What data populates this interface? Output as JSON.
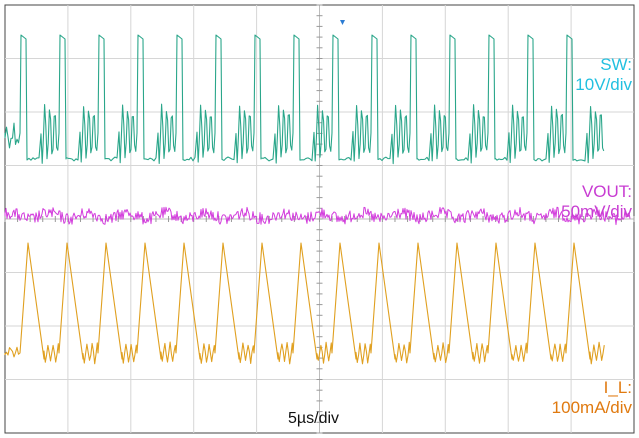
{
  "chart_data": {
    "type": "line",
    "title": "",
    "time_scale_label": "5µs/div",
    "grid": true,
    "grid_divisions": {
      "x": 10,
      "y": 8
    },
    "series": [
      {
        "name": "SW",
        "scale_label": "10V/div",
        "color": "#2aa68a",
        "label_color": "#22c0e0",
        "waveform": "switch-node pulses with ringing",
        "period_div": 0.62,
        "pulse_count": 14
      },
      {
        "name": "VOUT",
        "scale_label": "50mV/div",
        "color": "#d23cdc",
        "label_color": "#c83cd2",
        "waveform": "output ripple (noisy)",
        "period_div": 0.62
      },
      {
        "name": "I_L",
        "scale_label": "100mA/div",
        "color": "#e0a020",
        "label_color": "#e07a10",
        "waveform": "inductor current triangles with ringing",
        "period_div": 0.62,
        "peak_count": 14
      }
    ]
  },
  "labels": {
    "sw_name": "SW:",
    "sw_scale": "10V/div",
    "vout_name": "VOUT:",
    "vout_scale": "50mV/div",
    "il_name": "I_L:",
    "il_scale": "100mA/div",
    "timebase": "5µs/div"
  }
}
